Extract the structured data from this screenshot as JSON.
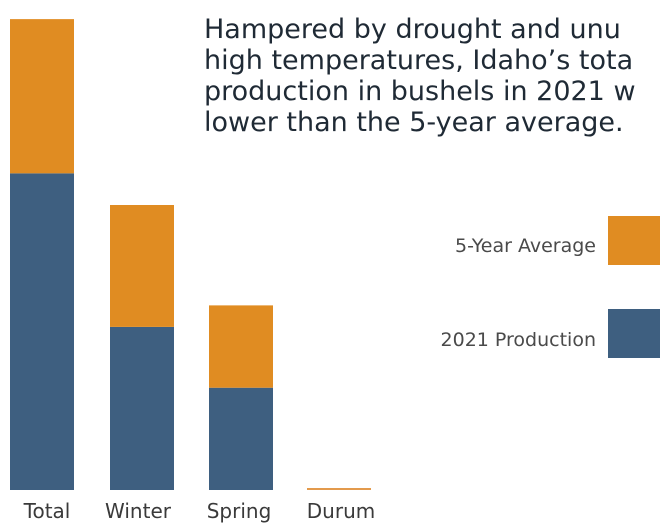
{
  "headline": {
    "lines": [
      "Hampered by drought and unu",
      "high temperatures, Idaho’s tota",
      "production in bushels in 2021 w",
      "lower than the 5-year average."
    ]
  },
  "colors": {
    "five_year_average": "#E08C22",
    "production_2021": "#3E5F80",
    "durum_line": "#E39A4C"
  },
  "chart_data": {
    "type": "bar",
    "stacked": true,
    "categories": [
      "Total",
      "Winter",
      "Spring",
      "Durum"
    ],
    "series": [
      {
        "name": "2021 Production",
        "color": "#3E5F80",
        "values": [
          100,
          51.5,
          32.3,
          0
        ]
      },
      {
        "name": "5-Year Average",
        "color": "#E08C22",
        "values": [
          48.7,
          38.5,
          26.0,
          0.6
        ]
      }
    ],
    "ylim": [
      0,
      150
    ],
    "legend": {
      "position": "right",
      "entries": [
        "5-Year Average",
        "2021 Production"
      ]
    },
    "grid": false
  }
}
